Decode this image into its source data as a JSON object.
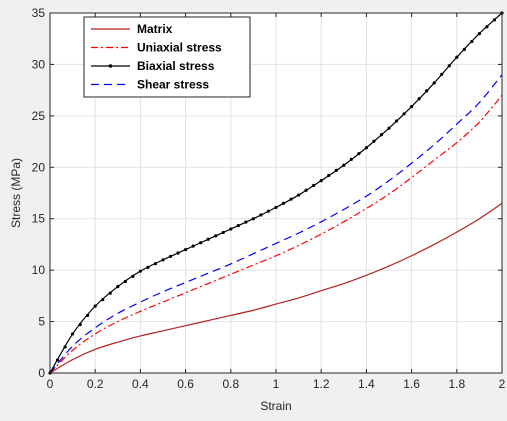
{
  "chart_data": {
    "type": "line",
    "title": "",
    "xlabel": "Strain",
    "ylabel": "Stress (MPa)",
    "xlim": [
      0,
      2
    ],
    "ylim": [
      0,
      35
    ],
    "x_ticks": [
      0,
      0.2,
      0.4,
      0.6,
      0.8,
      1,
      1.2,
      1.4,
      1.6,
      1.8,
      2
    ],
    "x_tick_labels": [
      "0",
      "0.2",
      "0.4",
      "0.6",
      "0.8",
      "1",
      "1.2",
      "1.4",
      "1.6",
      "1.8",
      "2"
    ],
    "y_ticks": [
      0,
      5,
      10,
      15,
      20,
      25,
      30,
      35
    ],
    "y_tick_labels": [
      "0",
      "5",
      "10",
      "15",
      "20",
      "25",
      "30",
      "35"
    ],
    "grid": true,
    "legend_position": "top-left",
    "series": [
      {
        "name": "Matrix",
        "color": "#b22222",
        "style": "solid",
        "x": [
          0,
          0.1,
          0.2,
          0.3,
          0.4,
          0.5,
          0.6,
          0.7,
          0.8,
          0.9,
          1.0,
          1.1,
          1.2,
          1.3,
          1.4,
          1.5,
          1.6,
          1.7,
          1.8,
          1.9,
          2.0
        ],
        "y": [
          0,
          1.3,
          2.3,
          3.0,
          3.6,
          4.1,
          4.6,
          5.1,
          5.6,
          6.1,
          6.7,
          7.3,
          8.0,
          8.7,
          9.5,
          10.4,
          11.4,
          12.5,
          13.7,
          15.0,
          16.5
        ]
      },
      {
        "name": "Uniaxial stress",
        "color": "#ff0000",
        "style": "dashdot",
        "x": [
          0,
          0.1,
          0.2,
          0.3,
          0.4,
          0.5,
          0.6,
          0.7,
          0.8,
          0.9,
          1.0,
          1.1,
          1.2,
          1.3,
          1.4,
          1.5,
          1.6,
          1.7,
          1.8,
          1.9,
          2.0
        ],
        "y": [
          0,
          2.2,
          3.8,
          5.0,
          6.0,
          6.9,
          7.8,
          8.7,
          9.6,
          10.5,
          11.4,
          12.4,
          13.5,
          14.7,
          16.0,
          17.4,
          19.0,
          20.7,
          22.4,
          24.4,
          27.0
        ]
      },
      {
        "name": "Biaxial stress",
        "color": "#000000",
        "style": "solid-dot",
        "x": [
          0,
          0.1,
          0.2,
          0.3,
          0.4,
          0.5,
          0.6,
          0.7,
          0.8,
          0.9,
          1.0,
          1.1,
          1.2,
          1.3,
          1.4,
          1.5,
          1.6,
          1.7,
          1.8,
          1.9,
          2.0
        ],
        "y": [
          0,
          3.8,
          6.5,
          8.4,
          9.9,
          11.0,
          12.0,
          13.0,
          14.0,
          15.0,
          16.1,
          17.3,
          18.7,
          20.2,
          21.9,
          23.8,
          25.9,
          28.2,
          30.7,
          33.0,
          35.0
        ]
      },
      {
        "name": "Shear stress",
        "color": "#0000ff",
        "style": "dashed",
        "x": [
          0,
          0.1,
          0.2,
          0.3,
          0.4,
          0.5,
          0.6,
          0.7,
          0.8,
          0.9,
          1.0,
          1.1,
          1.2,
          1.3,
          1.4,
          1.5,
          1.6,
          1.7,
          1.8,
          1.9,
          2.0
        ],
        "y": [
          0,
          2.6,
          4.4,
          5.8,
          6.9,
          7.9,
          8.8,
          9.7,
          10.6,
          11.6,
          12.6,
          13.6,
          14.7,
          15.9,
          17.2,
          18.7,
          20.4,
          22.2,
          24.2,
          26.3,
          29.0
        ]
      }
    ]
  }
}
